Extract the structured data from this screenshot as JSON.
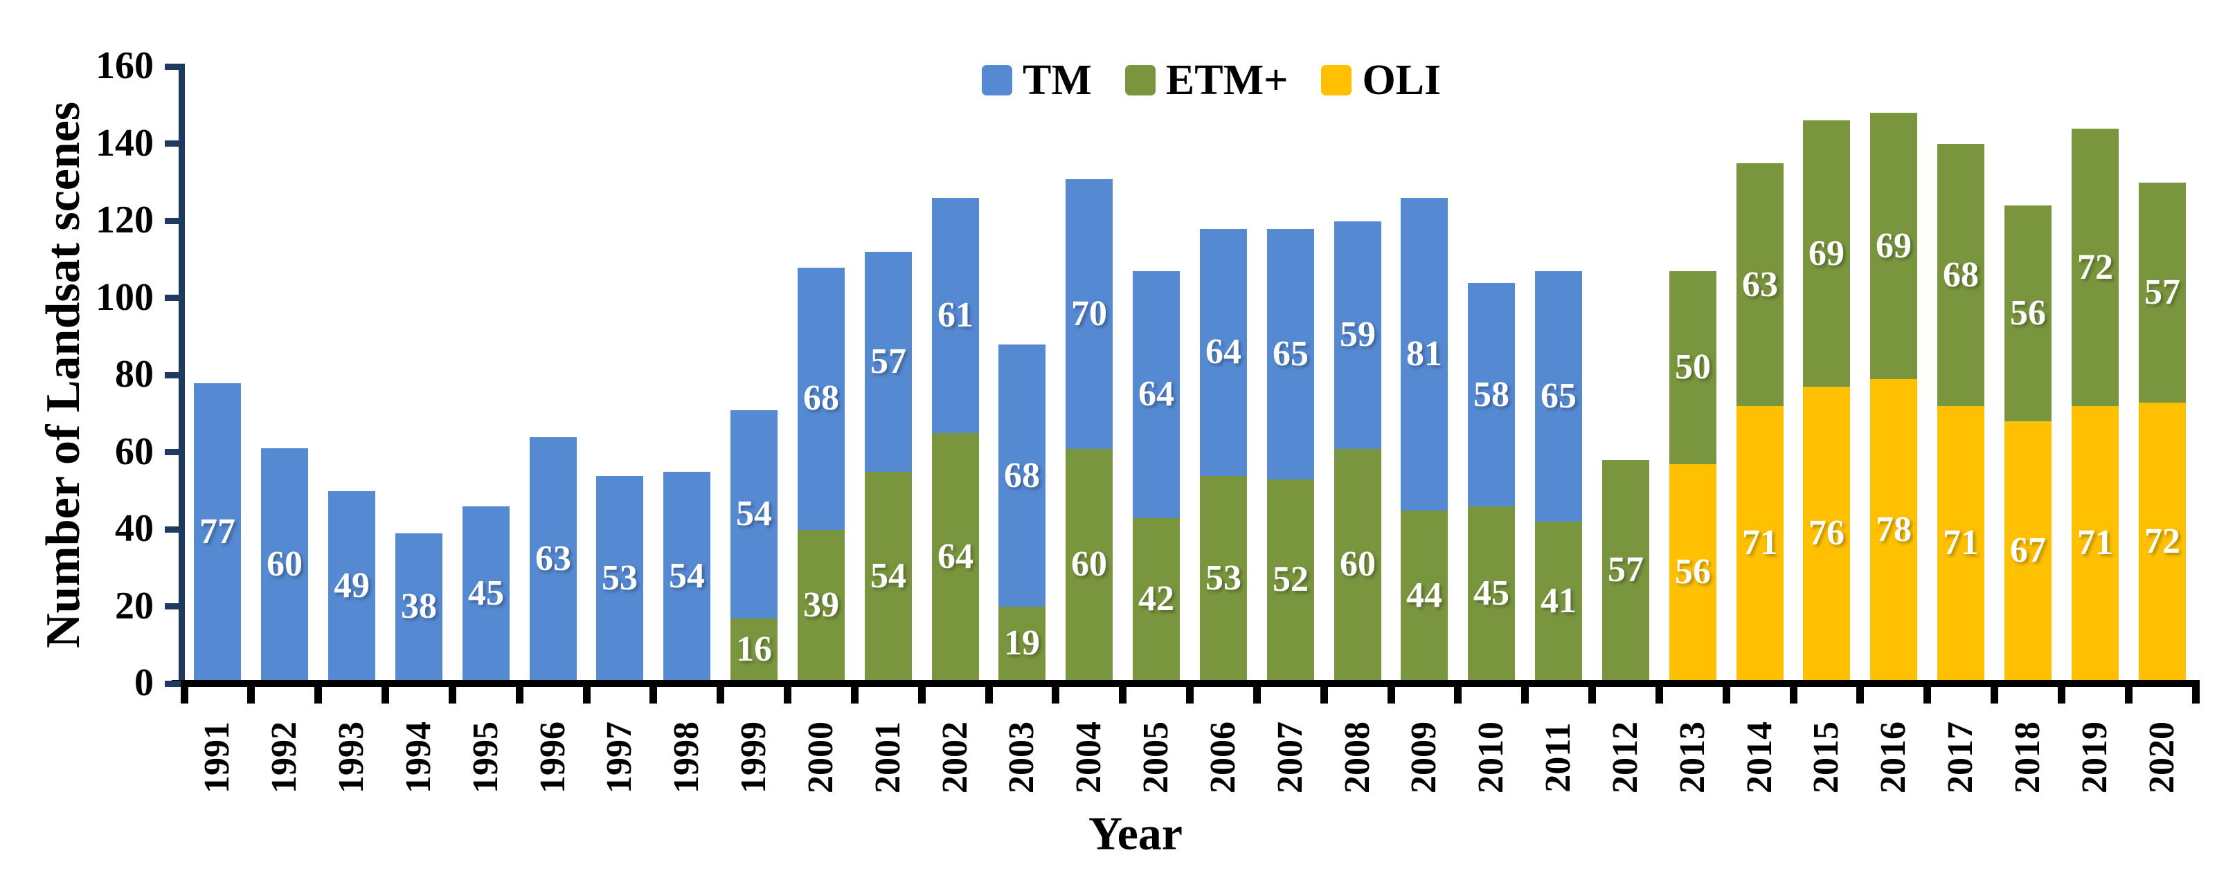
{
  "chart_data": {
    "type": "bar",
    "stacked": true,
    "title": "",
    "xlabel": "Year",
    "ylabel": "Number of Landsat scenes",
    "ylim": [
      0,
      160
    ],
    "ytick_step": 20,
    "y_tick_labels": [
      "0",
      "20",
      "40",
      "60",
      "80",
      "100",
      "120",
      "140",
      "160"
    ],
    "grid": false,
    "legend_position": "top-center",
    "bar_value_labels": "white numbers centered inside each segment",
    "categories": [
      "1991",
      "1992",
      "1993",
      "1994",
      "1995",
      "1996",
      "1997",
      "1998",
      "1999",
      "2000",
      "2001",
      "2002",
      "2003",
      "2004",
      "2005",
      "2006",
      "2007",
      "2008",
      "2009",
      "2010",
      "2011",
      "2012",
      "2013",
      "2014",
      "2015",
      "2016",
      "2017",
      "2018",
      "2019",
      "2020"
    ],
    "stack_order_bottom_to_top": [
      "OLI",
      "ETM+",
      "TM"
    ],
    "series": [
      {
        "name": "TM",
        "color": "#5589d2",
        "values": [
          77,
          60,
          49,
          38,
          45,
          63,
          53,
          54,
          54,
          68,
          57,
          61,
          68,
          70,
          64,
          64,
          65,
          59,
          81,
          58,
          65,
          0,
          0,
          0,
          0,
          0,
          0,
          0,
          0,
          0
        ]
      },
      {
        "name": "ETM+",
        "color": "#79953e",
        "values": [
          0,
          0,
          0,
          0,
          0,
          0,
          0,
          0,
          16,
          39,
          54,
          64,
          19,
          60,
          42,
          53,
          52,
          60,
          44,
          45,
          41,
          57,
          50,
          63,
          69,
          69,
          68,
          56,
          72,
          57
        ]
      },
      {
        "name": "OLI",
        "color": "#fec000",
        "values": [
          0,
          0,
          0,
          0,
          0,
          0,
          0,
          0,
          0,
          0,
          0,
          0,
          0,
          0,
          0,
          0,
          0,
          0,
          0,
          0,
          0,
          0,
          56,
          71,
          76,
          78,
          71,
          67,
          71,
          72
        ]
      }
    ],
    "colors": {
      "axis_y": "#1f3a5e",
      "axis_x": "#000000",
      "bar_label_text": "#ffffff",
      "tick_text": "#000000"
    }
  }
}
